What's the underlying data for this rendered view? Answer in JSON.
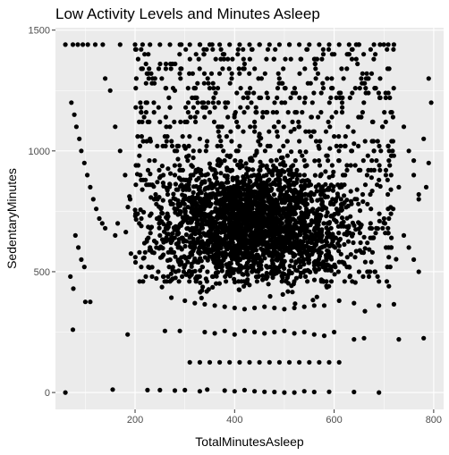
{
  "chart_data": {
    "type": "scatter",
    "title": "Low Activity Levels and Minutes Asleep",
    "xlabel": "TotalMinutesAsleep",
    "ylabel": "SedentaryMinutes",
    "xlim": [
      40,
      820
    ],
    "ylim": [
      -70,
      1510
    ],
    "x_ticks": [
      200,
      400,
      600,
      800
    ],
    "y_ticks": [
      0,
      500,
      1000,
      1500
    ],
    "grid": true,
    "legend": "none",
    "colors": {
      "panel": "#ebebeb",
      "grid": "#ffffff",
      "point": "#000000",
      "tick_text": "#4d4d4d",
      "tick_mark": "#333333"
    },
    "points": [
      [
        60,
        0
      ],
      [
        155,
        12
      ],
      [
        225,
        10
      ],
      [
        250,
        10
      ],
      [
        280,
        8
      ],
      [
        300,
        10
      ],
      [
        330,
        5
      ],
      [
        345,
        12
      ],
      [
        380,
        8
      ],
      [
        400,
        5
      ],
      [
        420,
        10
      ],
      [
        440,
        5
      ],
      [
        460,
        3
      ],
      [
        480,
        2
      ],
      [
        500,
        0
      ],
      [
        520,
        0
      ],
      [
        540,
        5
      ],
      [
        560,
        2
      ],
      [
        590,
        3
      ],
      [
        640,
        2
      ],
      [
        690,
        0
      ],
      [
        75,
        260
      ],
      [
        185,
        240
      ],
      [
        260,
        255
      ],
      [
        290,
        255
      ],
      [
        340,
        250
      ],
      [
        360,
        245
      ],
      [
        380,
        255
      ],
      [
        400,
        240
      ],
      [
        420,
        255
      ],
      [
        440,
        250
      ],
      [
        460,
        245
      ],
      [
        480,
        250
      ],
      [
        500,
        255
      ],
      [
        520,
        245
      ],
      [
        540,
        250
      ],
      [
        560,
        240
      ],
      [
        580,
        235
      ],
      [
        600,
        250
      ],
      [
        640,
        220
      ],
      [
        660,
        225
      ],
      [
        730,
        220
      ],
      [
        780,
        225
      ],
      [
        310,
        125
      ],
      [
        330,
        125
      ],
      [
        350,
        125
      ],
      [
        370,
        125
      ],
      [
        390,
        125
      ],
      [
        410,
        125
      ],
      [
        430,
        125
      ],
      [
        450,
        125
      ],
      [
        470,
        125
      ],
      [
        490,
        125
      ],
      [
        510,
        125
      ],
      [
        530,
        125
      ],
      [
        550,
        125
      ],
      [
        570,
        125
      ],
      [
        590,
        125
      ],
      [
        610,
        125
      ],
      [
        100,
        375
      ],
      [
        110,
        375
      ],
      [
        300,
        380
      ],
      [
        320,
        370
      ],
      [
        340,
        365
      ],
      [
        360,
        360
      ],
      [
        380,
        355
      ],
      [
        400,
        350
      ],
      [
        420,
        345
      ],
      [
        440,
        350
      ],
      [
        460,
        355
      ],
      [
        480,
        350
      ],
      [
        500,
        345
      ],
      [
        520,
        350
      ],
      [
        540,
        355
      ],
      [
        560,
        360
      ],
      [
        580,
        360
      ],
      [
        610,
        380
      ],
      [
        640,
        370
      ],
      [
        690,
        360
      ],
      [
        720,
        365
      ],
      [
        60,
        1440
      ],
      [
        75,
        1440
      ],
      [
        85,
        1440
      ],
      [
        95,
        1440
      ],
      [
        105,
        1440
      ],
      [
        120,
        1440
      ],
      [
        135,
        1440
      ],
      [
        170,
        1440
      ],
      [
        200,
        1440
      ],
      [
        215,
        1440
      ],
      [
        230,
        1440
      ],
      [
        250,
        1440
      ],
      [
        270,
        1440
      ],
      [
        290,
        1440
      ],
      [
        310,
        1440
      ],
      [
        330,
        1440
      ],
      [
        350,
        1440
      ],
      [
        370,
        1440
      ],
      [
        390,
        1440
      ],
      [
        410,
        1440
      ],
      [
        430,
        1440
      ],
      [
        450,
        1440
      ],
      [
        470,
        1440
      ],
      [
        490,
        1440
      ],
      [
        510,
        1440
      ],
      [
        530,
        1440
      ],
      [
        550,
        1440
      ],
      [
        570,
        1440
      ],
      [
        590,
        1440
      ],
      [
        610,
        1440
      ],
      [
        630,
        1440
      ],
      [
        650,
        1440
      ],
      [
        680,
        1440
      ],
      [
        700,
        1440
      ],
      [
        720,
        1440
      ],
      [
        240,
        1300
      ],
      [
        280,
        1250
      ],
      [
        320,
        1220
      ],
      [
        360,
        1180
      ],
      [
        400,
        1150
      ],
      [
        440,
        1120
      ],
      [
        480,
        1100
      ],
      [
        520,
        1090
      ],
      [
        560,
        1080
      ],
      [
        600,
        1060
      ],
      [
        640,
        1030
      ],
      [
        680,
        1000
      ],
      [
        720,
        980
      ],
      [
        760,
        960
      ],
      [
        230,
        1050
      ],
      [
        250,
        1120
      ],
      [
        270,
        1180
      ],
      [
        330,
        1050
      ],
      [
        370,
        1100
      ],
      [
        410,
        1020
      ],
      [
        450,
        1070
      ],
      [
        490,
        1000
      ],
      [
        530,
        1040
      ],
      [
        570,
        1010
      ],
      [
        610,
        960
      ],
      [
        650,
        920
      ],
      [
        690,
        880
      ],
      [
        730,
        850
      ],
      [
        770,
        820
      ],
      [
        72,
        1200
      ],
      [
        78,
        1150
      ],
      [
        82,
        1100
      ],
      [
        88,
        1050
      ],
      [
        92,
        1000
      ],
      [
        98,
        950
      ],
      [
        104,
        900
      ],
      [
        110,
        850
      ],
      [
        116,
        800
      ],
      [
        122,
        760
      ],
      [
        128,
        720
      ],
      [
        134,
        700
      ],
      [
        140,
        680
      ],
      [
        80,
        650
      ],
      [
        86,
        600
      ],
      [
        92,
        550
      ],
      [
        98,
        520
      ],
      [
        70,
        480
      ],
      [
        76,
        430
      ],
      [
        140,
        1300
      ],
      [
        150,
        1250
      ],
      [
        160,
        1100
      ],
      [
        170,
        1000
      ],
      [
        180,
        900
      ],
      [
        190,
        800
      ],
      [
        165,
        700
      ],
      [
        160,
        650
      ],
      [
        740,
        1100
      ],
      [
        750,
        1000
      ],
      [
        760,
        900
      ],
      [
        770,
        800
      ],
      [
        740,
        650
      ],
      [
        750,
        600
      ],
      [
        760,
        550
      ],
      [
        770,
        500
      ],
      [
        790,
        1300
      ],
      [
        795,
        1200
      ],
      [
        780,
        1050
      ],
      [
        790,
        950
      ],
      [
        785,
        850
      ],
      [
        230,
        600
      ],
      [
        250,
        650
      ],
      [
        270,
        700
      ],
      [
        290,
        750
      ],
      [
        310,
        800
      ],
      [
        330,
        850
      ],
      [
        350,
        820
      ],
      [
        370,
        780
      ],
      [
        390,
        760
      ],
      [
        410,
        740
      ],
      [
        430,
        720
      ],
      [
        450,
        700
      ],
      [
        470,
        680
      ],
      [
        490,
        660
      ],
      [
        510,
        640
      ],
      [
        530,
        620
      ],
      [
        550,
        600
      ],
      [
        570,
        580
      ],
      [
        590,
        560
      ],
      [
        610,
        540
      ],
      [
        630,
        520
      ],
      [
        650,
        500
      ],
      [
        670,
        480
      ],
      [
        690,
        460
      ],
      [
        710,
        440
      ]
    ],
    "cloud": {
      "x_center": 440,
      "x_spread": 95,
      "y_center": 700,
      "y_spread": 120,
      "count": 2200
    },
    "band": {
      "x_min": 200,
      "x_max": 720,
      "y_min": 450,
      "y_max": 1440,
      "count": 900
    }
  }
}
